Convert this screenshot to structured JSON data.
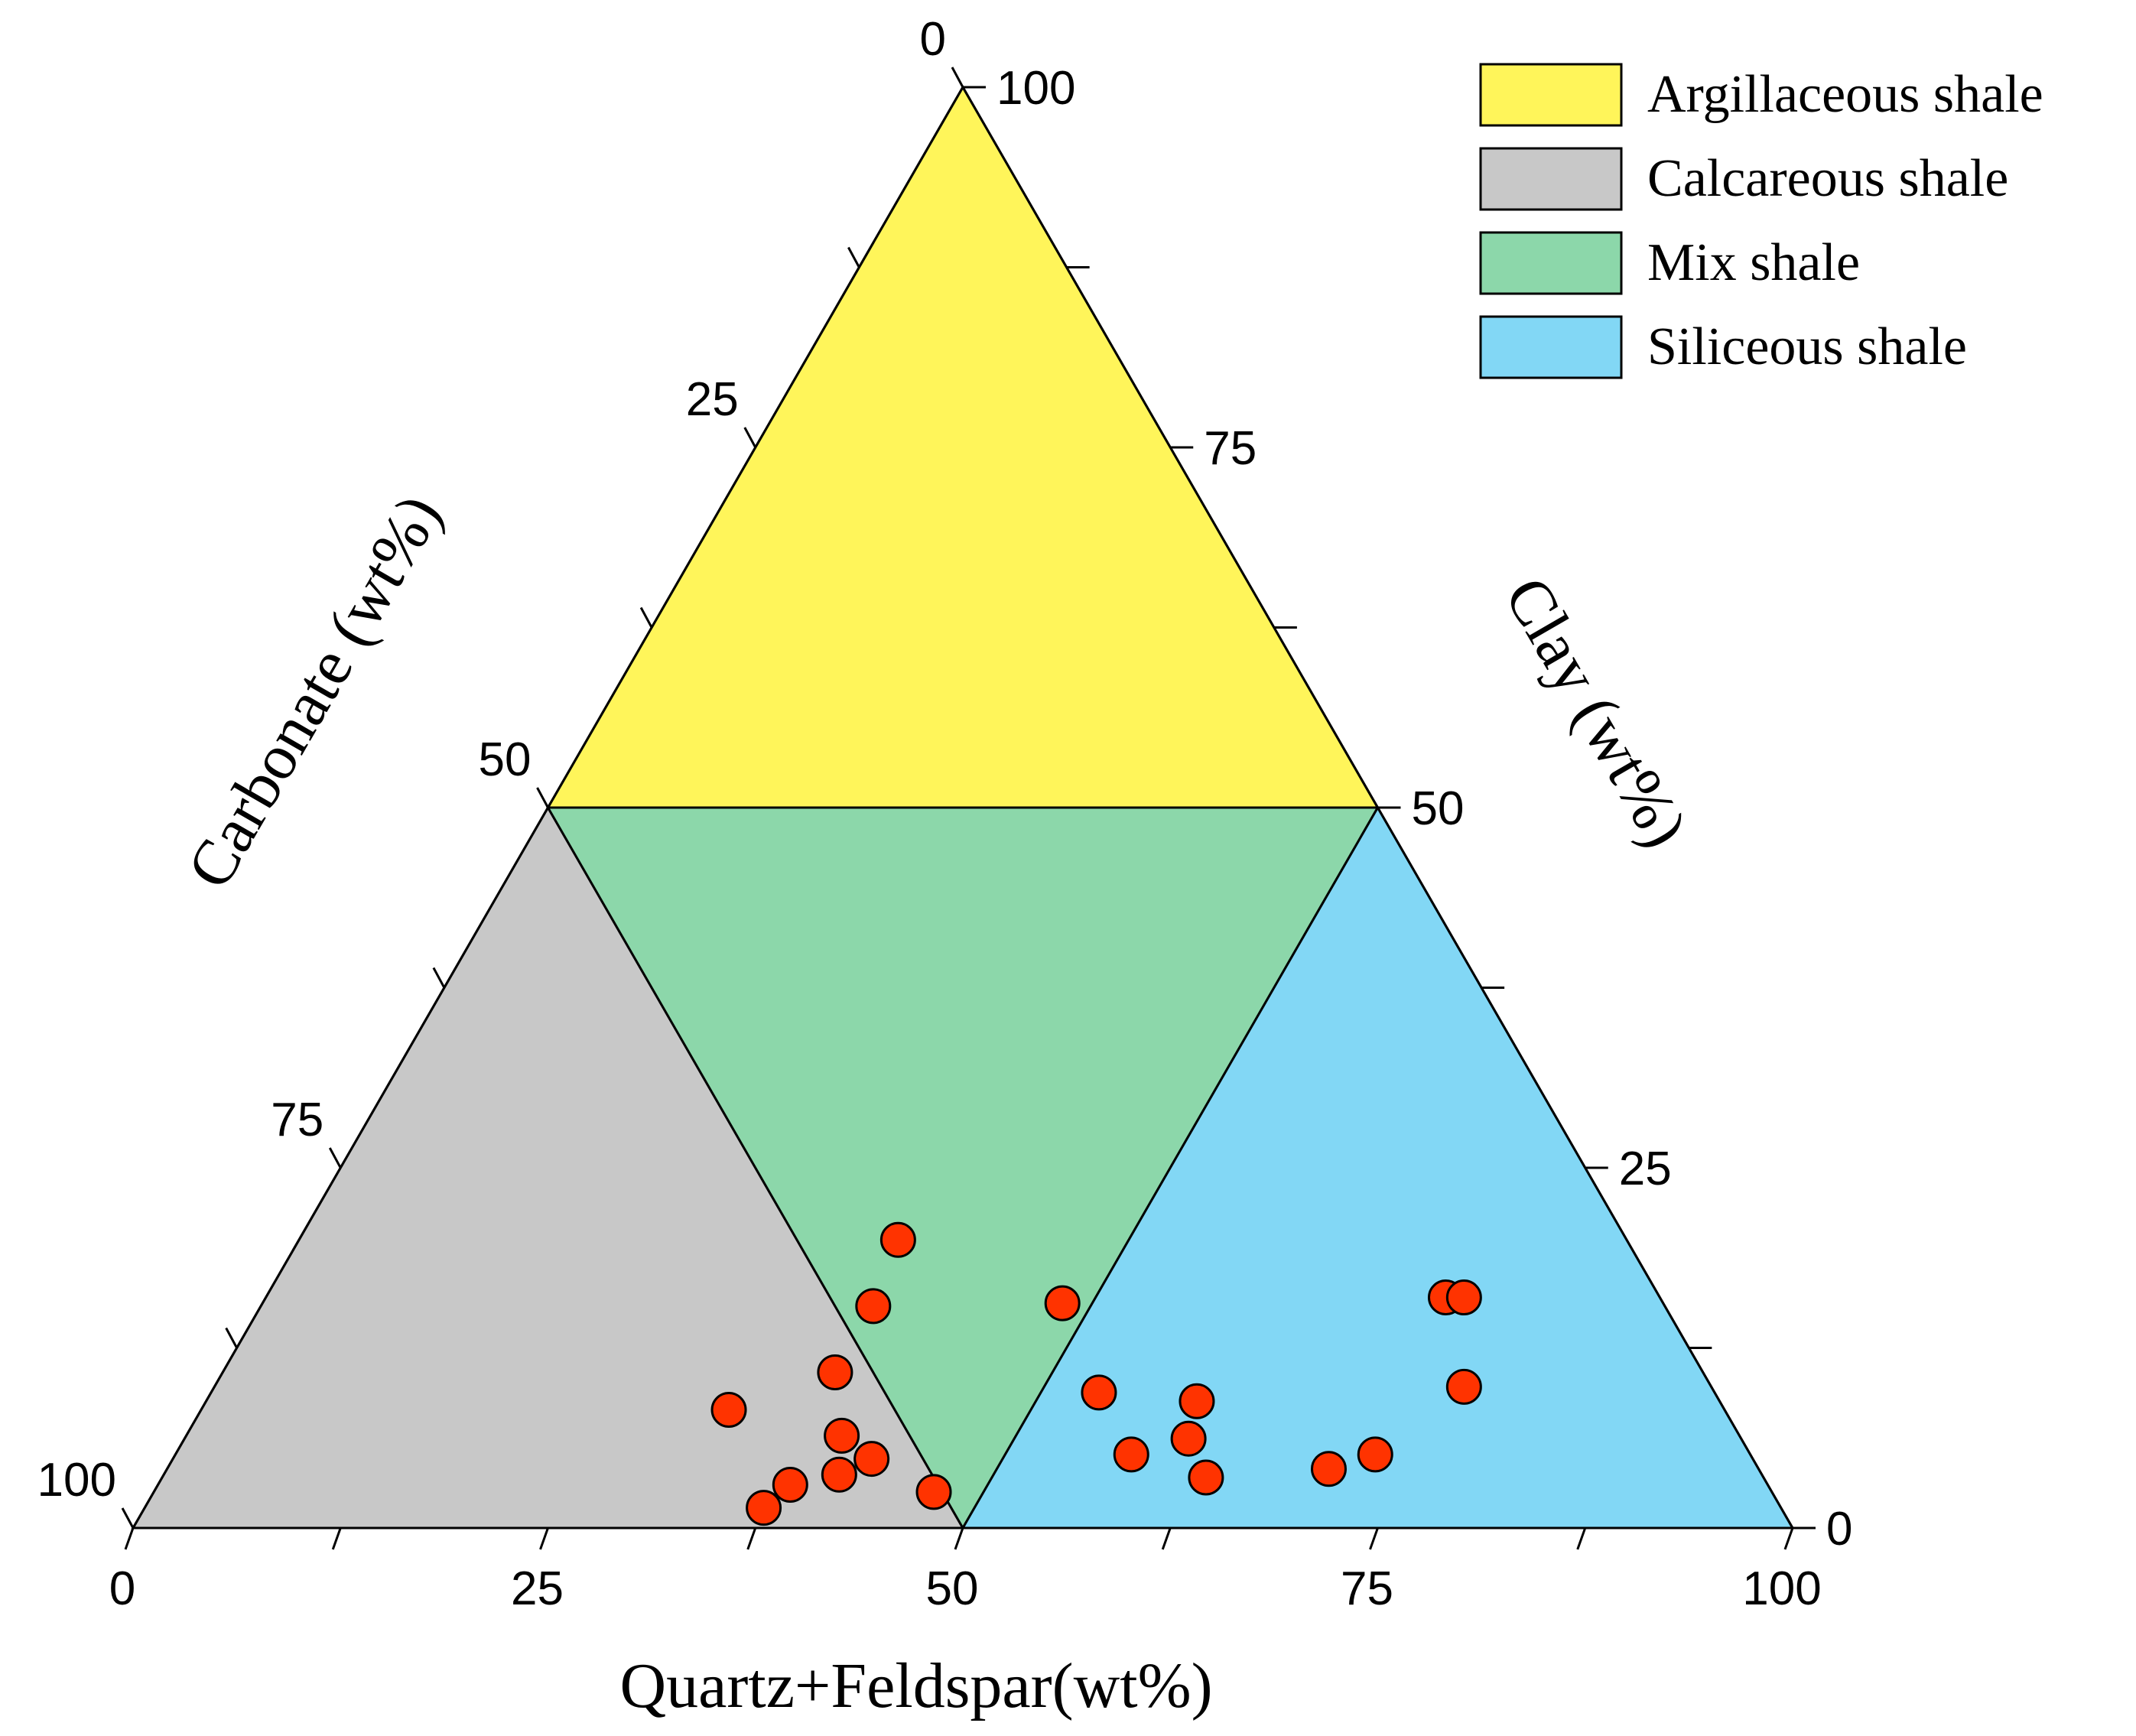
{
  "chart_data": {
    "type": "ternary-scatter",
    "axes": {
      "bottom": {
        "label": "Quartz+Feldspar(wt%)",
        "ticks": [
          "0",
          "25",
          "50",
          "75",
          "100"
        ],
        "range": [
          0,
          100
        ]
      },
      "left": {
        "label": "Carbonate (wt%)",
        "ticks": [
          "0",
          "25",
          "50",
          "75",
          "100"
        ],
        "range": [
          0,
          100
        ]
      },
      "right": {
        "label": "Clay (wt%)",
        "ticks": [
          "0",
          "25",
          "50",
          "75",
          "100"
        ],
        "range": [
          0,
          100
        ]
      }
    },
    "regions": [
      {
        "name": "Argillaceous shale",
        "color": "#FFF55A",
        "vertices": [
          [
            0,
            100
          ],
          [
            0,
            50
          ],
          [
            50,
            50
          ]
        ]
      },
      {
        "name": "Calcareous shale",
        "color": "#C8C8C8",
        "vertices": [
          [
            0,
            50
          ],
          [
            0,
            0
          ],
          [
            50,
            0
          ]
        ]
      },
      {
        "name": "Mix shale",
        "color": "#8CD7AA",
        "vertices": [
          [
            0,
            50
          ],
          [
            50,
            0
          ],
          [
            50,
            50
          ]
        ]
      },
      {
        "name": "Siliceous shale",
        "color": "#82D7F5",
        "vertices": [
          [
            50,
            50
          ],
          [
            50,
            0
          ],
          [
            100,
            0
          ]
        ]
      }
    ],
    "points": {
      "color": "#FF3300",
      "values": [
        {
          "qf": 31.8,
          "clay": 8.2
        },
        {
          "qf": 39.5,
          "clay": 6.4
        },
        {
          "qf": 40.7,
          "clay": 3.7
        },
        {
          "qf": 42.1,
          "clay": 4.8
        },
        {
          "qf": 38.1,
          "clay": 3.0
        },
        {
          "qf": 37.3,
          "clay": 1.4
        },
        {
          "qf": 36.9,
          "clay": 10.8
        },
        {
          "qf": 36.9,
          "clay": 15.4
        },
        {
          "qf": 36.1,
          "clay": 20.0
        },
        {
          "qf": 47.0,
          "clay": 2.5
        },
        {
          "qf": 48.2,
          "clay": 15.6
        },
        {
          "qf": 53.5,
          "clay": 9.4
        },
        {
          "qf": 57.6,
          "clay": 5.1
        },
        {
          "qf": 59.7,
          "clay": 8.8
        },
        {
          "qf": 60.5,
          "clay": 6.2
        },
        {
          "qf": 62.9,
          "clay": 3.5
        },
        {
          "qf": 70.0,
          "clay": 4.1
        },
        {
          "qf": 72.3,
          "clay": 5.1
        },
        {
          "qf": 71.1,
          "clay": 16.0
        },
        {
          "qf": 72.2,
          "clay": 16.0
        },
        {
          "qf": 75.3,
          "clay": 9.8
        }
      ]
    }
  }
}
